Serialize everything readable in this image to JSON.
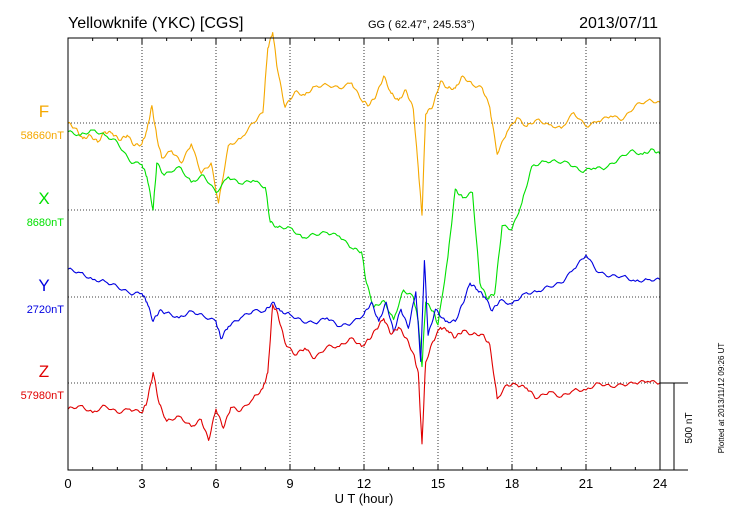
{
  "chart_data": {
    "type": "line",
    "title": "Yellowknife (YKC)  [CGS]",
    "coords": "GG ( 62.47°, 245.53°)",
    "date": "2013/07/11",
    "plotted": "Plotted at 2013/11/12 09:26 UT",
    "xlabel": "U T (hour)",
    "xlim": [
      0,
      24
    ],
    "xticks": [
      0,
      3,
      6,
      9,
      12,
      15,
      18,
      21,
      24
    ],
    "grid": true,
    "scale_bar": {
      "label": "500 nT",
      "nT": 500
    },
    "series": [
      {
        "name": "F",
        "baseline_label": "58660nT",
        "baseline": 58660,
        "color": "#f5a800",
        "x": [
          0,
          0.3,
          0.6,
          0.9,
          1.2,
          1.5,
          1.8,
          2.1,
          2.4,
          2.7,
          3.0,
          3.2,
          3.4,
          3.6,
          3.8,
          4.2,
          4.6,
          5.0,
          5.4,
          5.8,
          6.1,
          6.5,
          7.0,
          7.5,
          7.9,
          8.1,
          8.3,
          8.5,
          8.8,
          9.2,
          9.6,
          10.0,
          10.5,
          11.0,
          11.5,
          11.9,
          12.2,
          12.5,
          12.8,
          13.1,
          13.4,
          13.7,
          14.0,
          14.2,
          14.35,
          14.5,
          14.8,
          15.1,
          15.4,
          15.7,
          16.0,
          16.4,
          16.8,
          17.1,
          17.4,
          17.8,
          18.2,
          18.6,
          19.0,
          19.5,
          20.0,
          20.5,
          21.0,
          21.5,
          22.0,
          22.5,
          23.0,
          23.5,
          24.0
        ],
        "y": [
          58660,
          58630,
          58570,
          58590,
          58550,
          58610,
          58600,
          58560,
          58590,
          58530,
          58540,
          58620,
          58760,
          58580,
          58460,
          58500,
          58430,
          58540,
          58370,
          58430,
          58200,
          58530,
          58570,
          58660,
          58720,
          59090,
          59180,
          58960,
          58750,
          58840,
          58820,
          58870,
          58880,
          58860,
          58890,
          58790,
          58760,
          58820,
          58930,
          58830,
          58790,
          58850,
          58740,
          58400,
          58130,
          58710,
          58760,
          58900,
          58860,
          58860,
          58930,
          58880,
          58860,
          58750,
          58480,
          58610,
          58690,
          58640,
          58680,
          58650,
          58630,
          58720,
          58640,
          58670,
          58700,
          58680,
          58760,
          58790,
          58780
        ]
      },
      {
        "name": "X",
        "baseline_label": "8680nT",
        "baseline": 8680,
        "color": "#00e000",
        "x": [
          0,
          0.5,
          1.0,
          1.5,
          2.0,
          2.5,
          3.0,
          3.2,
          3.45,
          3.6,
          3.9,
          4.5,
          5.0,
          5.5,
          6.0,
          6.5,
          7.0,
          7.5,
          8.0,
          8.2,
          8.5,
          9.0,
          9.5,
          10.0,
          10.5,
          11.0,
          11.5,
          11.9,
          12.1,
          12.4,
          12.8,
          13.2,
          13.6,
          14.0,
          14.2,
          14.35,
          14.5,
          14.8,
          15.0,
          15.4,
          15.7,
          16.0,
          16.4,
          16.7,
          17.0,
          17.3,
          17.6,
          18.0,
          18.4,
          18.8,
          19.3,
          19.8,
          20.3,
          20.8,
          21.3,
          21.8,
          22.3,
          22.8,
          23.3,
          23.7,
          24.0
        ],
        "y": [
          9130,
          9110,
          9140,
          9110,
          9070,
          8960,
          8940,
          8870,
          8680,
          8950,
          8880,
          8930,
          8840,
          8880,
          8780,
          8870,
          8830,
          8850,
          8810,
          8610,
          8580,
          8580,
          8520,
          8540,
          8550,
          8530,
          8460,
          8440,
          8260,
          8120,
          8160,
          8050,
          8220,
          8180,
          8040,
          7780,
          8150,
          8100,
          8020,
          8410,
          8800,
          8750,
          8780,
          8260,
          8170,
          8200,
          8590,
          8570,
          8720,
          8930,
          8960,
          8960,
          8950,
          8900,
          8920,
          8920,
          8970,
          9020,
          9000,
          9030,
          9000
        ]
      },
      {
        "name": "Y",
        "baseline_label": "2720nT",
        "baseline": 2720,
        "color": "#0000e0",
        "x": [
          0,
          0.5,
          1.0,
          1.5,
          2.0,
          2.5,
          3.0,
          3.2,
          3.45,
          3.7,
          4.0,
          4.5,
          5.0,
          5.5,
          6.0,
          6.2,
          6.5,
          7.0,
          7.5,
          8.0,
          8.3,
          8.6,
          9.0,
          9.5,
          10.0,
          10.5,
          11.0,
          11.5,
          12.0,
          12.3,
          12.6,
          12.9,
          13.2,
          13.5,
          13.8,
          14.1,
          14.3,
          14.45,
          14.6,
          14.9,
          15.3,
          15.7,
          16.0,
          16.3,
          16.6,
          16.9,
          17.2,
          17.5,
          18.0,
          18.5,
          19.0,
          19.5,
          20.0,
          20.5,
          21.0,
          21.5,
          22.0,
          22.5,
          23.0,
          23.5,
          24.0
        ],
        "y": [
          2880,
          2860,
          2820,
          2810,
          2780,
          2740,
          2740,
          2690,
          2580,
          2640,
          2630,
          2600,
          2640,
          2610,
          2580,
          2480,
          2550,
          2600,
          2640,
          2640,
          2690,
          2640,
          2620,
          2580,
          2570,
          2600,
          2550,
          2570,
          2620,
          2690,
          2580,
          2690,
          2520,
          2650,
          2540,
          2750,
          2350,
          2930,
          2500,
          2650,
          2580,
          2580,
          2680,
          2800,
          2760,
          2720,
          2640,
          2700,
          2680,
          2740,
          2750,
          2780,
          2800,
          2880,
          2960,
          2860,
          2840,
          2840,
          2810,
          2820,
          2820
        ]
      },
      {
        "name": "Z",
        "baseline_label": "57980nT",
        "baseline": 57980,
        "color": "#e00000",
        "x": [
          0,
          0.5,
          1.0,
          1.5,
          2.0,
          2.5,
          3.0,
          3.2,
          3.45,
          3.7,
          4.0,
          4.5,
          5.0,
          5.4,
          5.7,
          6.0,
          6.3,
          6.6,
          7.0,
          7.5,
          7.9,
          8.1,
          8.3,
          8.5,
          8.8,
          9.2,
          9.6,
          10.0,
          10.5,
          11.0,
          11.5,
          11.9,
          12.2,
          12.5,
          12.8,
          13.1,
          13.4,
          13.7,
          14.0,
          14.2,
          14.35,
          14.5,
          14.8,
          15.1,
          15.4,
          15.7,
          16.0,
          16.4,
          16.8,
          17.1,
          17.4,
          17.8,
          18.2,
          18.6,
          19.0,
          19.5,
          20.0,
          20.5,
          21.0,
          21.5,
          22.0,
          22.5,
          23.0,
          23.5,
          24.0
        ],
        "y": [
          57830,
          57850,
          57810,
          57850,
          57810,
          57830,
          57810,
          57870,
          58040,
          57860,
          57760,
          57790,
          57730,
          57770,
          57650,
          57830,
          57720,
          57840,
          57820,
          57890,
          57950,
          58040,
          58430,
          58380,
          58210,
          58140,
          58180,
          58120,
          58190,
          58190,
          58240,
          58190,
          58230,
          58290,
          58350,
          58260,
          58300,
          58240,
          58150,
          58040,
          57630,
          58100,
          58220,
          58300,
          58280,
          58240,
          58280,
          58260,
          58260,
          58200,
          57890,
          57970,
          57970,
          57950,
          57890,
          57930,
          57900,
          57940,
          57940,
          57980,
          57960,
          57970,
          57980,
          57990,
          57980
        ]
      }
    ]
  }
}
